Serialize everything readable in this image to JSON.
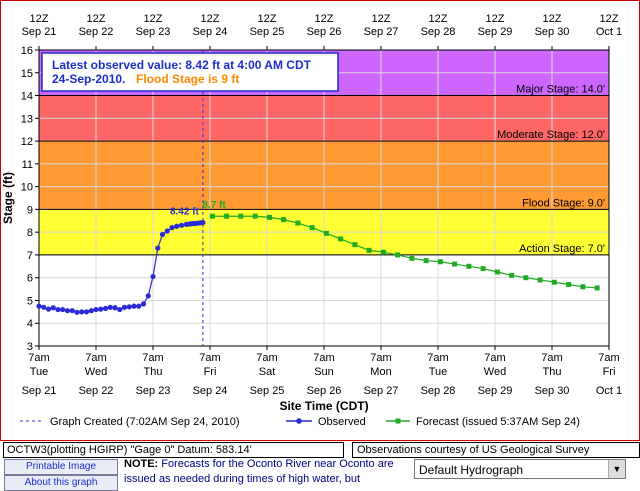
{
  "chart_data": {
    "type": "line",
    "ylabel": "Stage (ft)",
    "xlabel": "Site Time (CDT)",
    "ylim": [
      3,
      16
    ],
    "yticks": [
      "3",
      "4",
      "5",
      "6",
      "7",
      "8",
      "9",
      "10",
      "11",
      "12",
      "13",
      "14",
      "15",
      "16"
    ],
    "top_ticks": [
      {
        "z": "12Z",
        "date": "Sep 21"
      },
      {
        "z": "12Z",
        "date": "Sep 22"
      },
      {
        "z": "12Z",
        "date": "Sep 23"
      },
      {
        "z": "12Z",
        "date": "Sep 24"
      },
      {
        "z": "12Z",
        "date": "Sep 25"
      },
      {
        "z": "12Z",
        "date": "Sep 26"
      },
      {
        "z": "12Z",
        "date": "Sep 27"
      },
      {
        "z": "12Z",
        "date": "Sep 28"
      },
      {
        "z": "12Z",
        "date": "Sep 29"
      },
      {
        "z": "12Z",
        "date": "Sep 30"
      },
      {
        "z": "12Z",
        "date": "Oct 1"
      }
    ],
    "bottom_ticks": [
      {
        "time": "7am",
        "day": "Tue",
        "date": "Sep 21"
      },
      {
        "time": "7am",
        "day": "Wed",
        "date": "Sep 22"
      },
      {
        "time": "7am",
        "day": "Thu",
        "date": "Sep 23"
      },
      {
        "time": "7am",
        "day": "Fri",
        "date": "Sep 24"
      },
      {
        "time": "7am",
        "day": "Sat",
        "date": "Sep 25"
      },
      {
        "time": "7am",
        "day": "Sun",
        "date": "Sep 26"
      },
      {
        "time": "7am",
        "day": "Mon",
        "date": "Sep 27"
      },
      {
        "time": "7am",
        "day": "Tue",
        "date": "Sep 28"
      },
      {
        "time": "7am",
        "day": "Wed",
        "date": "Sep 29"
      },
      {
        "time": "7am",
        "day": "Thu",
        "date": "Sep 30"
      },
      {
        "time": "7am",
        "day": "Fri",
        "date": "Oct 1"
      }
    ],
    "bands": [
      {
        "name": "record",
        "from": 14,
        "to": 16,
        "color": "#cc66ff"
      },
      {
        "name": "major",
        "from": 12,
        "to": 14,
        "color": "#ff6666"
      },
      {
        "name": "moderate",
        "from": 9,
        "to": 12,
        "color": "#ff9933"
      },
      {
        "name": "flood",
        "from": 7,
        "to": 9,
        "color": "#ffff33"
      },
      {
        "name": "normal",
        "from": 3,
        "to": 7,
        "color": "#ffffff"
      }
    ],
    "thresholds": [
      {
        "label": "Major Stage: 14.0'",
        "value": 14.0
      },
      {
        "label": "Moderate Stage: 12.0'",
        "value": 12.0
      },
      {
        "label": "Flood Stage: 9.0'",
        "value": 9.0
      },
      {
        "label": "Action Stage: 7.0'",
        "value": 7.0
      }
    ],
    "x_unit": "hours after 7am Sep 21 (CDT)",
    "x_range": [
      0,
      240
    ],
    "graph_created_x": 69,
    "series": [
      {
        "name": "Observed",
        "color": "#2a2ad8",
        "x": [
          0,
          2,
          4,
          6,
          8,
          10,
          12,
          14,
          16,
          18,
          20,
          22,
          24,
          26,
          28,
          30,
          32,
          34,
          36,
          38,
          40,
          42,
          44,
          46,
          48,
          50,
          52,
          54,
          56,
          58,
          60,
          62,
          63,
          64,
          65,
          66,
          67,
          68,
          69
        ],
        "y": [
          4.75,
          4.7,
          4.62,
          4.68,
          4.6,
          4.6,
          4.55,
          4.55,
          4.48,
          4.5,
          4.5,
          4.55,
          4.6,
          4.62,
          4.65,
          4.7,
          4.68,
          4.6,
          4.7,
          4.72,
          4.75,
          4.75,
          4.85,
          5.2,
          6.05,
          7.3,
          7.9,
          8.05,
          8.2,
          8.26,
          8.3,
          8.34,
          8.35,
          8.37,
          8.38,
          8.38,
          8.4,
          8.41,
          8.42
        ]
      },
      {
        "name": "Forecast",
        "color": "#22aa22",
        "x": [
          73,
          79,
          85,
          91,
          97,
          103,
          109,
          115,
          121,
          127,
          133,
          139,
          145,
          151,
          157,
          163,
          169,
          175,
          181,
          187,
          193,
          199,
          205,
          211,
          217,
          223,
          229,
          235
        ],
        "y": [
          8.7,
          8.7,
          8.7,
          8.7,
          8.65,
          8.55,
          8.4,
          8.2,
          7.95,
          7.7,
          7.45,
          7.2,
          7.12,
          7.0,
          6.85,
          6.75,
          6.7,
          6.6,
          6.5,
          6.4,
          6.25,
          6.1,
          6.0,
          5.9,
          5.8,
          5.7,
          5.6,
          5.55
        ]
      }
    ],
    "data_labels": [
      {
        "text": "8.42 ft",
        "series": "Observed"
      },
      {
        "text": "8.7 ft",
        "series": "Forecast"
      }
    ],
    "annotation": {
      "line1": "Latest observed value: 8.42 ft at 4:00 AM CDT",
      "line2_date": "24-Sep-2010.",
      "line2_flood": "Flood Stage is 9 ft"
    },
    "legend": {
      "graph_created": "Graph Created (7:02AM Sep 24, 2010)",
      "observed": "Observed",
      "forecast": "Forecast (issued 5:37AM Sep 24)"
    }
  },
  "footer": {
    "datum": "OCTW3(plotting HGIRP) \"Gage 0\" Datum: 583.14'",
    "courtesy": "Observations courtesy of US Geological Survey",
    "printable": "Printable Image",
    "about": "About this graph",
    "note_bold": "NOTE:",
    "note_text": "Forecasts for the Oconto River near Oconto are issued as needed during times of high water, but",
    "select_value": "Default Hydrograph"
  },
  "colors": {
    "record": "#cc66ff",
    "major": "#ff6666",
    "moderate": "#ff9933",
    "flood": "#ffff33",
    "observed": "#2a2ad8",
    "forecast": "#22aa22",
    "frame": "#cc0000"
  }
}
